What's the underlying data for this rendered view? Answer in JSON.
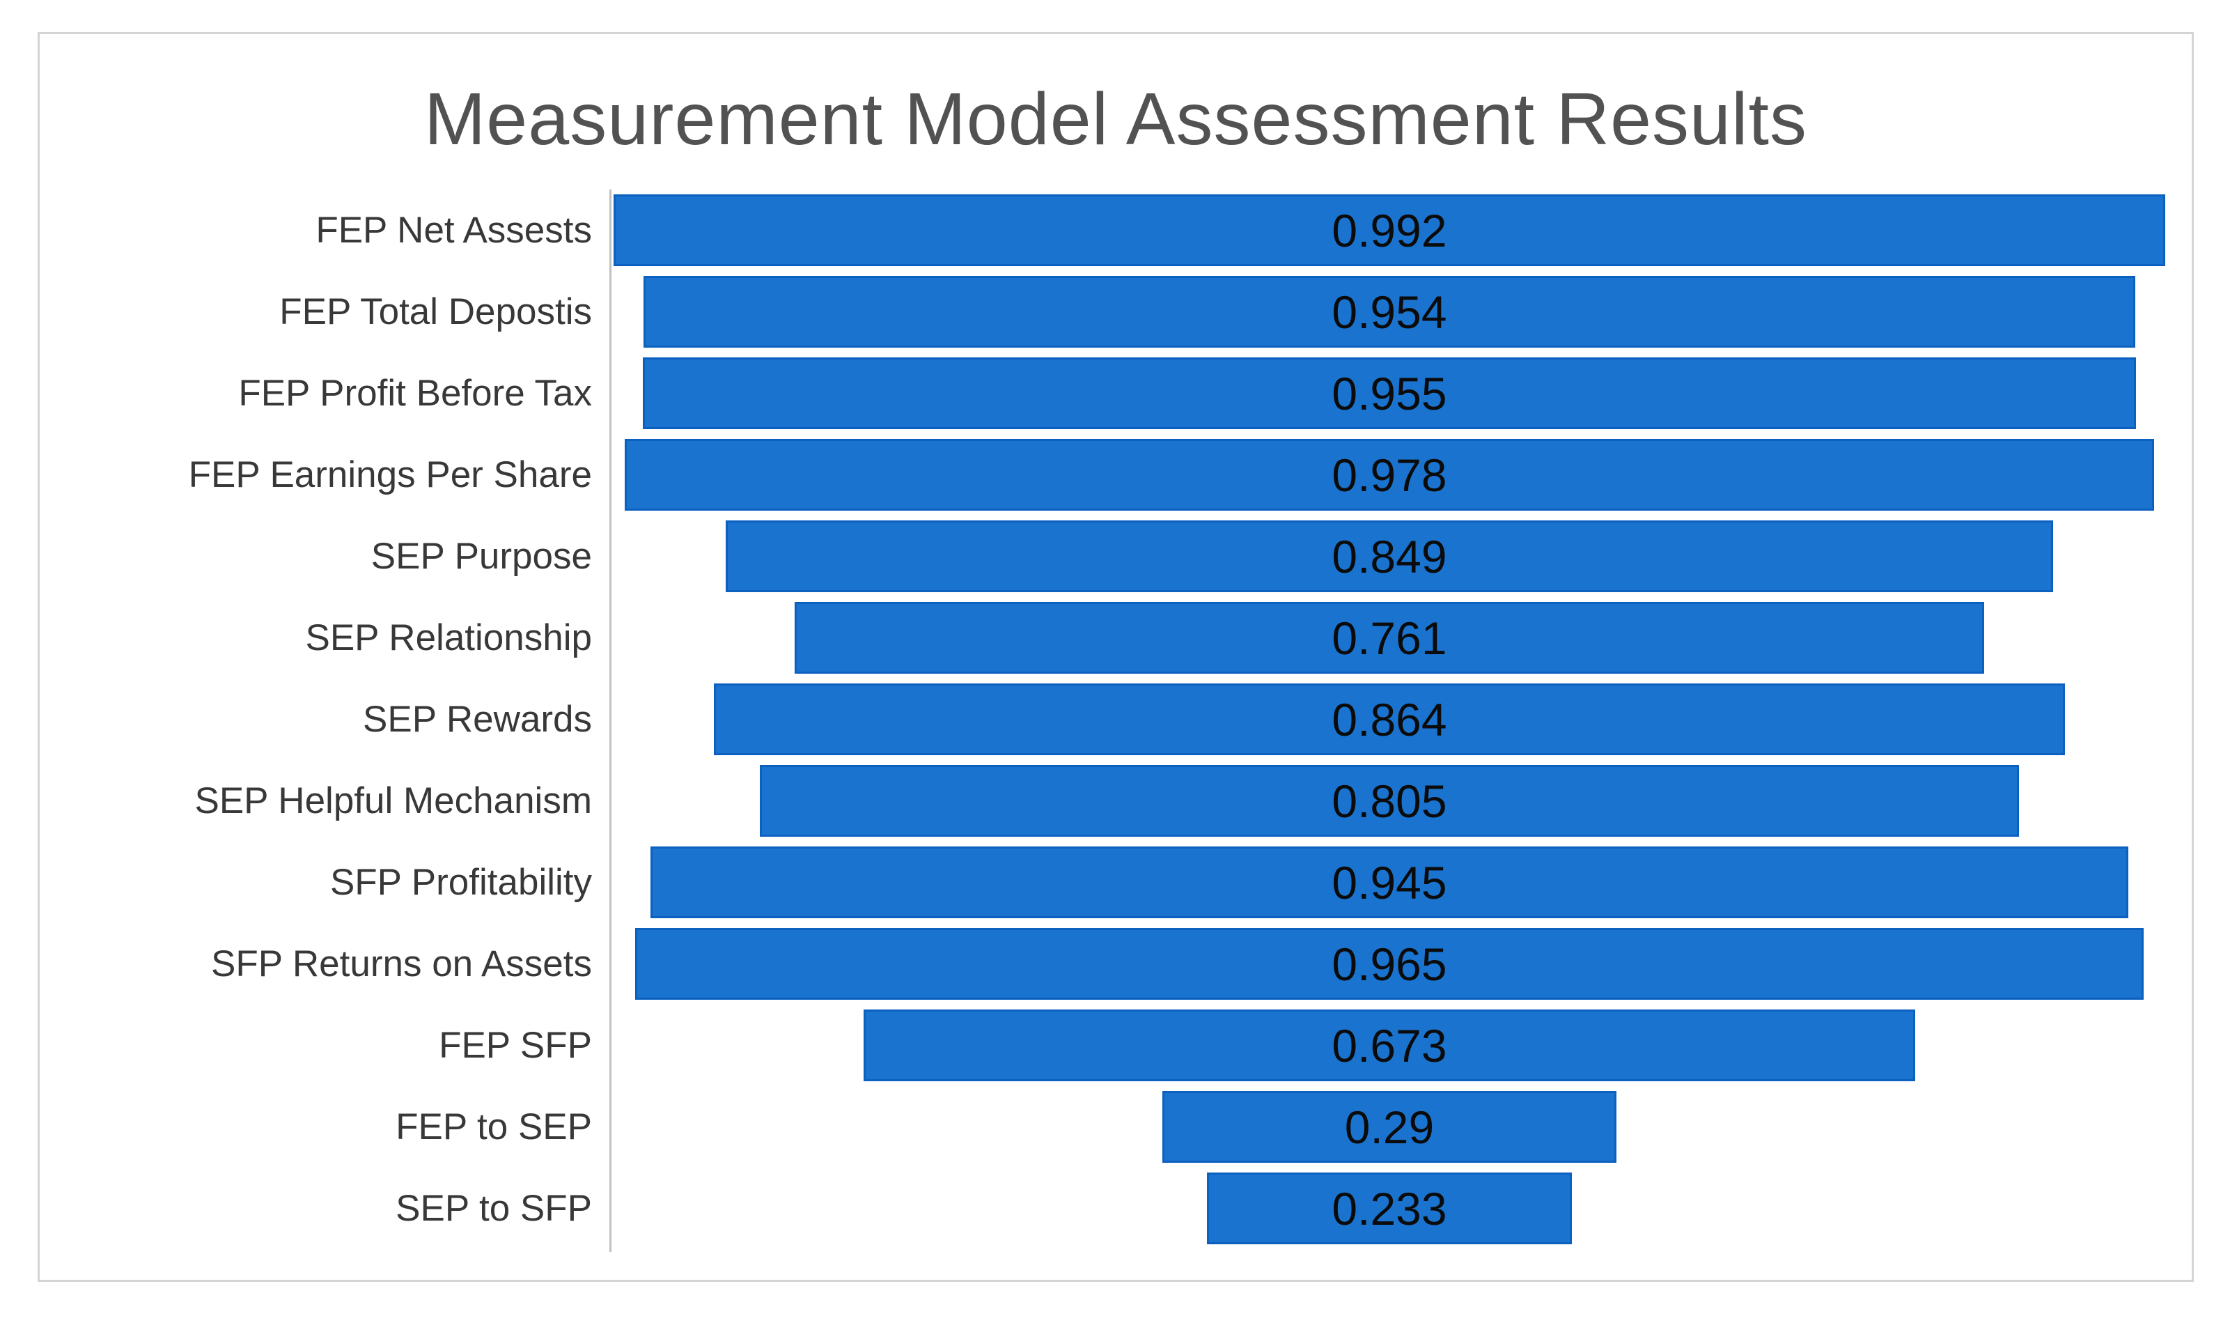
{
  "chart_data": {
    "type": "bar",
    "subtype": "funnel_centered_horizontal",
    "title": "Measurement Model Assessment Results",
    "categories": [
      "FEP Net Assests",
      "FEP Total Depostis",
      "FEP Profit Before Tax",
      "FEP Earnings Per Share",
      "SEP Purpose",
      "SEP Relationship",
      "SEP Rewards",
      "SEP Helpful Mechanism",
      "SFP Profitability",
      "SFP Returns on Assets",
      "FEP SFP",
      "FEP to SEP",
      "SEP to SFP"
    ],
    "values": [
      0.992,
      0.954,
      0.955,
      0.978,
      0.849,
      0.761,
      0.864,
      0.805,
      0.945,
      0.965,
      0.673,
      0.29,
      0.233
    ],
    "value_labels": [
      "0.992",
      "0.954",
      "0.955",
      "0.978",
      "0.849",
      "0.761",
      "0.864",
      "0.805",
      "0.945",
      "0.965",
      "0.673",
      "0.29",
      "0.233"
    ],
    "xlim": [
      0,
      1.0
    ],
    "orientation": "horizontal",
    "bars_centered": true,
    "grid": false,
    "legend": "none",
    "colors": {
      "bar_fill": "#1a74cf",
      "bar_border": "#0b60c0",
      "title_text": "#525252",
      "category_text": "#383838",
      "value_text": "#0b0b0b",
      "axis_line": "#c1c1c1",
      "chart_border": "#d4d4d4",
      "background": "#ffffff"
    }
  }
}
